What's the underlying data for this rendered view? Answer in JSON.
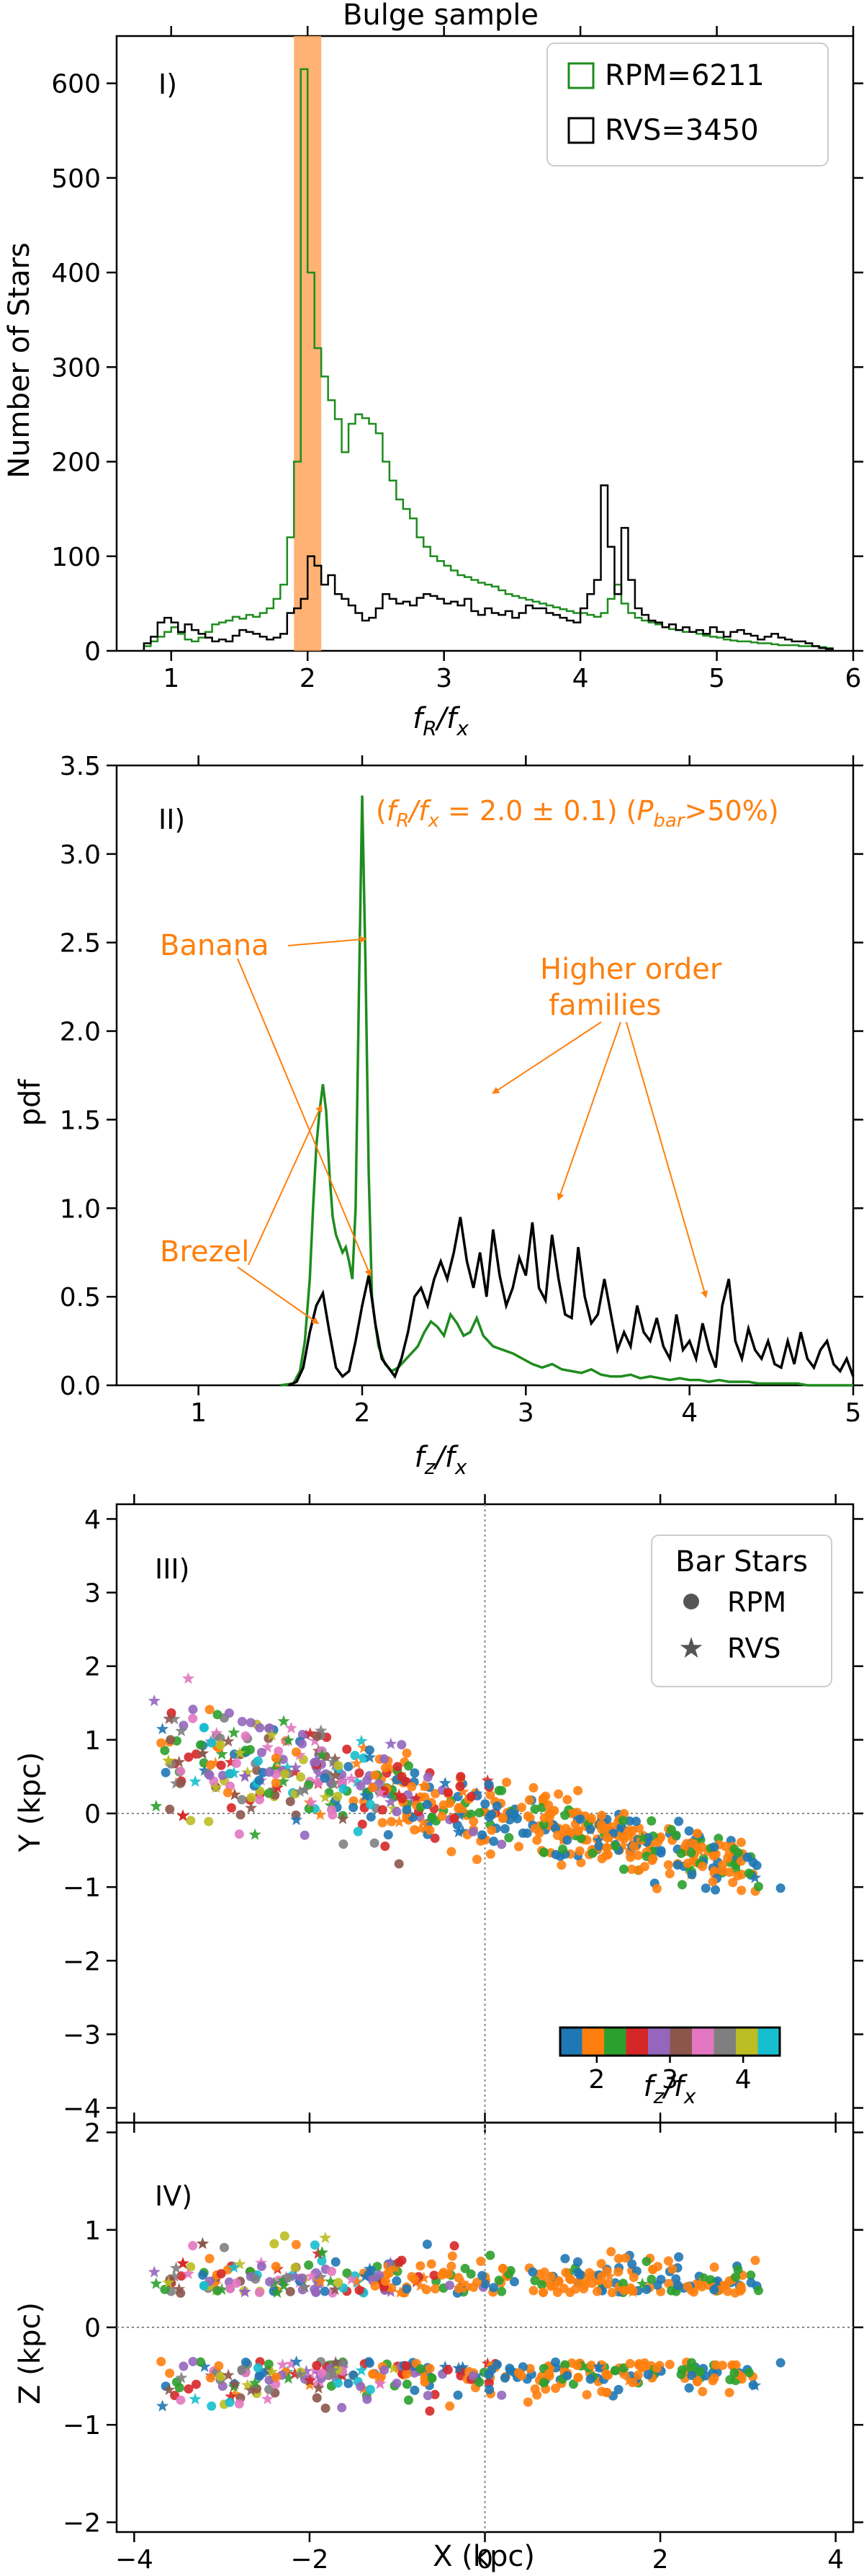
{
  "figure": {
    "title": "Bulge sample"
  },
  "chart_data": [
    {
      "panel": "I)",
      "type": "histogram",
      "xlabel_main": "f",
      "xlabel_sub1": "R",
      "xlabel_mid": "/f",
      "xlabel_sub2": "x",
      "ylabel": "Number of Stars",
      "xlim": [
        0.6,
        6.0
      ],
      "ylim": [
        0,
        650
      ],
      "xticks": [
        "1",
        "2",
        "3",
        "4",
        "5",
        "6"
      ],
      "xtick_values": [
        1,
        2,
        3,
        4,
        5,
        6
      ],
      "yticks": [
        "0",
        "100",
        "200",
        "300",
        "400",
        "500",
        "600"
      ],
      "ytick_values": [
        0,
        100,
        200,
        300,
        400,
        500,
        600
      ],
      "highlight_band": [
        1.9,
        2.1
      ],
      "bin_edges": [
        0.8,
        5.85
      ],
      "bin_width": 0.05,
      "series": [
        {
          "name": "RPM=6211",
          "color": "#1e8c1e",
          "values": [
            5,
            10,
            15,
            20,
            25,
            18,
            12,
            10,
            14,
            20,
            28,
            30,
            32,
            36,
            34,
            38,
            36,
            40,
            45,
            55,
            70,
            120,
            200,
            615,
            400,
            320,
            290,
            265,
            245,
            210,
            240,
            250,
            246,
            240,
            230,
            200,
            180,
            160,
            150,
            140,
            120,
            110,
            100,
            95,
            90,
            85,
            80,
            78,
            75,
            72,
            70,
            68,
            64,
            60,
            58,
            56,
            54,
            52,
            50,
            48,
            46,
            44,
            42,
            40,
            40,
            38,
            36,
            40,
            55,
            70,
            50,
            40,
            35,
            32,
            30,
            28,
            25,
            23,
            22,
            20,
            20,
            18,
            16,
            15,
            14,
            12,
            11,
            10,
            10,
            9,
            8,
            8,
            7,
            6,
            6,
            6,
            5,
            5,
            5,
            4,
            3
          ]
        },
        {
          "name": "RVS=3450",
          "color": "#000000",
          "values": [
            8,
            15,
            30,
            35,
            30,
            20,
            28,
            22,
            18,
            14,
            10,
            12,
            10,
            16,
            22,
            20,
            18,
            15,
            12,
            14,
            18,
            40,
            45,
            55,
            100,
            90,
            70,
            80,
            60,
            55,
            48,
            40,
            32,
            35,
            45,
            60,
            55,
            50,
            52,
            48,
            56,
            60,
            58,
            55,
            50,
            52,
            48,
            55,
            42,
            38,
            45,
            40,
            38,
            42,
            35,
            40,
            48,
            45,
            45,
            40,
            38,
            35,
            32,
            30,
            45,
            60,
            75,
            175,
            110,
            60,
            130,
            75,
            45,
            38,
            32,
            30,
            25,
            28,
            22,
            25,
            20,
            22,
            18,
            25,
            20,
            15,
            20,
            22,
            18,
            16,
            12,
            15,
            18,
            14,
            12,
            10,
            10,
            8,
            5,
            3,
            2
          ]
        }
      ],
      "legend": "top-right"
    },
    {
      "panel": "II)",
      "type": "line",
      "xlabel_main": "f",
      "xlabel_sub1": "z",
      "xlabel_mid": "/f",
      "xlabel_sub2": "x",
      "ylabel": "pdf",
      "xlim": [
        0.5,
        5.0
      ],
      "ylim": [
        0,
        3.5
      ],
      "xticks": [
        "1",
        "2",
        "3",
        "4",
        "5"
      ],
      "xtick_values": [
        1,
        2,
        3,
        4,
        5
      ],
      "yticks": [
        "0.0",
        "0.5",
        "1.0",
        "1.5",
        "2.0",
        "2.5",
        "3.0",
        "3.5"
      ],
      "ytick_values": [
        0,
        0.5,
        1.0,
        1.5,
        2.0,
        2.5,
        3.0,
        3.5
      ],
      "annotation_title": "(f_R/f_x = 2.0 ± 0.1) (P_bar>50%)",
      "annotation_parts": {
        "open": "(",
        "f1": "f",
        "sub1": "R",
        "slash": "/",
        "f2": "f",
        "sub2": "x",
        "eq": " = 2.0 ± 0.1) (",
        "p": "P",
        "psub": "bar",
        "tail": ">50%)"
      },
      "labels": {
        "banana": "Banana",
        "brezel": "Brezel",
        "higher_line1": "Higher order",
        "higher_line2": "families"
      },
      "annotation_color": "#ff7f0e",
      "series": [
        {
          "name": "green",
          "color": "#1e8c1e",
          "x": [
            1.5,
            1.58,
            1.62,
            1.65,
            1.68,
            1.7,
            1.72,
            1.74,
            1.76,
            1.78,
            1.8,
            1.82,
            1.84,
            1.86,
            1.88,
            1.9,
            1.92,
            1.94,
            1.96,
            1.98,
            2.0,
            2.02,
            2.04,
            2.06,
            2.08,
            2.1,
            2.14,
            2.18,
            2.22,
            2.26,
            2.3,
            2.34,
            2.38,
            2.42,
            2.46,
            2.5,
            2.54,
            2.58,
            2.62,
            2.66,
            2.7,
            2.74,
            2.8,
            2.86,
            2.92,
            2.98,
            3.04,
            3.1,
            3.16,
            3.22,
            3.28,
            3.34,
            3.4,
            3.46,
            3.52,
            3.58,
            3.64,
            3.7,
            3.76,
            3.82,
            3.88,
            3.94,
            4.0,
            4.06,
            4.12,
            4.18,
            4.24,
            4.3,
            4.36,
            4.42,
            4.48,
            4.54,
            4.6,
            4.66,
            4.72,
            4.78,
            4.84,
            4.9,
            4.96,
            5.0
          ],
          "y": [
            0.0,
            0.01,
            0.08,
            0.25,
            0.6,
            1.0,
            1.35,
            1.55,
            1.7,
            1.55,
            1.2,
            0.95,
            0.85,
            0.8,
            0.75,
            0.78,
            0.7,
            0.6,
            1.0,
            2.2,
            3.33,
            2.4,
            1.2,
            0.5,
            0.35,
            0.22,
            0.12,
            0.08,
            0.1,
            0.14,
            0.18,
            0.22,
            0.3,
            0.36,
            0.33,
            0.28,
            0.4,
            0.35,
            0.28,
            0.3,
            0.38,
            0.28,
            0.22,
            0.2,
            0.18,
            0.15,
            0.12,
            0.1,
            0.12,
            0.09,
            0.08,
            0.07,
            0.09,
            0.06,
            0.05,
            0.05,
            0.06,
            0.04,
            0.05,
            0.04,
            0.03,
            0.04,
            0.03,
            0.03,
            0.02,
            0.03,
            0.02,
            0.02,
            0.02,
            0.01,
            0.01,
            0.01,
            0.01,
            0.01,
            0.0,
            0.0,
            0.0,
            0.0,
            0.0,
            0.0
          ]
        },
        {
          "name": "black",
          "color": "#000000",
          "x": [
            1.55,
            1.6,
            1.64,
            1.68,
            1.72,
            1.76,
            1.8,
            1.84,
            1.88,
            1.92,
            1.96,
            2.0,
            2.04,
            2.08,
            2.12,
            2.16,
            2.2,
            2.24,
            2.28,
            2.32,
            2.36,
            2.4,
            2.44,
            2.48,
            2.52,
            2.56,
            2.6,
            2.64,
            2.68,
            2.72,
            2.76,
            2.8,
            2.84,
            2.88,
            2.92,
            2.96,
            3.0,
            3.04,
            3.08,
            3.12,
            3.16,
            3.2,
            3.24,
            3.28,
            3.32,
            3.36,
            3.4,
            3.44,
            3.48,
            3.52,
            3.56,
            3.6,
            3.64,
            3.68,
            3.72,
            3.76,
            3.8,
            3.84,
            3.88,
            3.92,
            3.96,
            4.0,
            4.04,
            4.08,
            4.12,
            4.16,
            4.2,
            4.24,
            4.28,
            4.32,
            4.36,
            4.4,
            4.44,
            4.48,
            4.52,
            4.56,
            4.6,
            4.64,
            4.68,
            4.72,
            4.76,
            4.8,
            4.84,
            4.88,
            4.92,
            4.96,
            5.0
          ],
          "y": [
            0.0,
            0.02,
            0.1,
            0.3,
            0.45,
            0.52,
            0.3,
            0.1,
            0.05,
            0.08,
            0.25,
            0.45,
            0.62,
            0.35,
            0.15,
            0.1,
            0.05,
            0.15,
            0.3,
            0.5,
            0.55,
            0.45,
            0.6,
            0.7,
            0.6,
            0.75,
            0.95,
            0.7,
            0.55,
            0.75,
            0.5,
            0.88,
            0.62,
            0.45,
            0.55,
            0.72,
            0.62,
            0.92,
            0.55,
            0.48,
            0.85,
            0.6,
            0.4,
            0.38,
            0.78,
            0.5,
            0.35,
            0.4,
            0.6,
            0.4,
            0.2,
            0.3,
            0.22,
            0.45,
            0.3,
            0.25,
            0.38,
            0.22,
            0.15,
            0.4,
            0.2,
            0.25,
            0.15,
            0.35,
            0.2,
            0.1,
            0.45,
            0.6,
            0.25,
            0.15,
            0.32,
            0.2,
            0.15,
            0.25,
            0.12,
            0.1,
            0.25,
            0.12,
            0.3,
            0.15,
            0.1,
            0.2,
            0.25,
            0.12,
            0.08,
            0.15,
            0.05
          ]
        }
      ]
    },
    {
      "panel": "III)",
      "type": "scatter",
      "xlim": [
        -4.2,
        4.2
      ],
      "ylim": [
        -4.2,
        4.2
      ],
      "ylabel": "Y (kpc)",
      "xticks": [
        "−4",
        "−2",
        "0",
        "2",
        "4"
      ],
      "xtick_values": [
        -4,
        -2,
        0,
        2,
        4
      ],
      "yticks": [
        "−4",
        "−3",
        "−2",
        "−1",
        "0",
        "1",
        "2",
        "3",
        "4"
      ],
      "ytick_values": [
        -4,
        -3,
        -2,
        -1,
        0,
        1,
        2,
        3,
        4
      ],
      "legend_title": "Bar Stars",
      "legend_items": [
        "RPM",
        "RVS"
      ],
      "colorbar": {
        "label_main": "f",
        "label_sub1": "z",
        "label_mid": "/f",
        "label_sub2": "x",
        "range": [
          1.5,
          4.5
        ],
        "ticks": [
          "2",
          "3",
          "4"
        ],
        "tick_values": [
          2,
          3,
          4
        ],
        "colors": [
          "#1f77b4",
          "#ff7f0e",
          "#2ca02c",
          "#d62728",
          "#9467bd",
          "#8c564b",
          "#e377c2",
          "#7f7f7f",
          "#bcbd22",
          "#17becf"
        ]
      }
    },
    {
      "panel": "IV)",
      "type": "scatter",
      "xlim": [
        -4.2,
        4.2
      ],
      "ylim": [
        -2.1,
        2.1
      ],
      "xlabel": "X (kpc)",
      "ylabel": "Z (kpc)",
      "xticks": [
        "−4",
        "−2",
        "0",
        "2",
        "4"
      ],
      "xtick_values": [
        -4,
        -2,
        0,
        2,
        4
      ],
      "yticks": [
        "−2",
        "−1",
        "0",
        "1",
        "2"
      ],
      "ytick_values": [
        -2,
        -1,
        0,
        1,
        2
      ]
    }
  ]
}
